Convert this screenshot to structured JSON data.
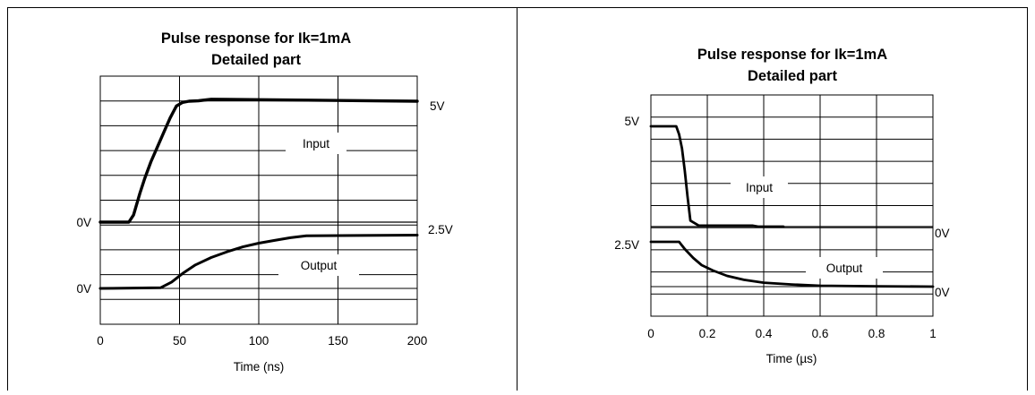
{
  "chart_data": [
    {
      "type": "line",
      "title": "Pulse response for Ik=1mA",
      "subtitle": "Detailed part",
      "xlabel": "Time (ns)",
      "ylabel": "",
      "xlim": [
        0,
        200
      ],
      "x_ticks": [
        "0",
        "50",
        "100",
        "150",
        "200"
      ],
      "grid": true,
      "series": [
        {
          "name": "Input",
          "color": "#000000",
          "x": [
            0,
            18,
            21,
            25,
            28,
            32,
            36,
            40,
            44,
            48,
            52,
            56,
            62,
            70,
            200
          ],
          "y": [
            0,
            0,
            0.3,
            1.2,
            1.8,
            2.5,
            3.1,
            3.7,
            4.3,
            4.8,
            4.95,
            5.0,
            5.02,
            5.08,
            5.0
          ]
        },
        {
          "name": "Output",
          "color": "#000000",
          "x": [
            0,
            38,
            45,
            52,
            60,
            70,
            80,
            90,
            100,
            110,
            120,
            130,
            200
          ],
          "y": [
            0,
            0.03,
            0.3,
            0.7,
            1.1,
            1.45,
            1.72,
            1.95,
            2.12,
            2.25,
            2.38,
            2.47,
            2.5
          ]
        }
      ],
      "annotations": {
        "left_0v_top": "0V",
        "left_0v_bottom": "0V",
        "right_5v": "5V",
        "right_2_5v": "2.5V"
      }
    },
    {
      "type": "line",
      "title": "Pulse response for Ik=1mA",
      "subtitle": "Detailed part",
      "xlabel": "Time (µs)",
      "ylabel": "",
      "xlim": [
        0,
        1
      ],
      "x_ticks": [
        "0",
        "0.2",
        "0.4",
        "0.6",
        "0.8",
        "1"
      ],
      "grid": true,
      "series": [
        {
          "name": "Input",
          "color": "#000000",
          "x": [
            0,
            0.09,
            0.1,
            0.11,
            0.12,
            0.13,
            0.14,
            0.17,
            0.2,
            0.3,
            0.36,
            0.38,
            0.47
          ],
          "y": [
            5.0,
            5.0,
            4.6,
            3.9,
            2.8,
            1.5,
            0.3,
            0.05,
            0.05,
            0.05,
            0.05,
            0.0,
            0.0
          ]
        },
        {
          "name": "Output",
          "color": "#000000",
          "x": [
            0,
            0.1,
            0.12,
            0.15,
            0.18,
            0.22,
            0.27,
            0.33,
            0.4,
            0.5,
            0.6,
            0.8,
            1.0
          ],
          "y": [
            2.5,
            2.5,
            2.1,
            1.6,
            1.2,
            0.9,
            0.6,
            0.38,
            0.22,
            0.12,
            0.05,
            0.02,
            0.0
          ]
        }
      ],
      "annotations": {
        "left_5v": "5V",
        "left_2_5v": "2.5V",
        "right_0v_top": "0V",
        "right_0v_bottom": "0V"
      }
    }
  ]
}
